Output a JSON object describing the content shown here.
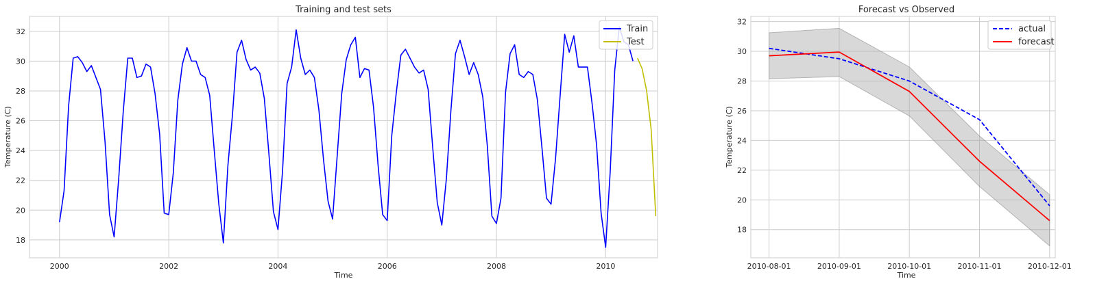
{
  "chart_data": [
    {
      "type": "line",
      "title": "Training and test sets",
      "xlabel": "Time",
      "ylabel": "Temperature (C)",
      "xlim": [
        1999.45,
        2010.95
      ],
      "ylim": [
        16.8,
        33.0
      ],
      "xticks": [
        2000,
        2002,
        2004,
        2006,
        2008,
        2010
      ],
      "xtick_labels": [
        "2000",
        "2002",
        "2004",
        "2006",
        "2008",
        "2010"
      ],
      "yticks": [
        18,
        20,
        22,
        24,
        26,
        28,
        30,
        32
      ],
      "ytick_labels": [
        "18",
        "20",
        "22",
        "24",
        "26",
        "28",
        "30",
        "32"
      ],
      "grid": true,
      "legend": "top-right",
      "series": [
        {
          "name": "Train",
          "color": "#0000ff",
          "x_start": 2000,
          "x_step": 0.08333,
          "values": [
            19.2,
            21.3,
            27.0,
            30.2,
            30.3,
            29.9,
            29.3,
            29.7,
            28.9,
            28.1,
            24.6,
            19.7,
            18.2,
            22.1,
            26.6,
            30.2,
            30.2,
            28.9,
            29.0,
            29.8,
            29.6,
            27.8,
            25.1,
            19.8,
            19.7,
            22.5,
            27.4,
            29.8,
            30.9,
            30.0,
            30.0,
            29.1,
            28.9,
            27.7,
            24.0,
            20.4,
            17.8,
            23.0,
            26.4,
            30.6,
            31.4,
            30.1,
            29.4,
            29.6,
            29.2,
            27.5,
            23.8,
            19.9,
            18.7,
            22.6,
            28.5,
            29.6,
            32.1,
            30.2,
            29.1,
            29.4,
            28.9,
            26.7,
            23.4,
            20.6,
            19.4,
            23.6,
            27.8,
            30.1,
            31.1,
            31.6,
            28.9,
            29.5,
            29.4,
            26.9,
            23.0,
            19.7,
            19.3,
            25.0,
            27.9,
            30.4,
            30.8,
            30.2,
            29.6,
            29.2,
            29.4,
            28.1,
            24.2,
            20.5,
            19.0,
            22.1,
            26.7,
            30.5,
            31.4,
            30.3,
            29.1,
            29.9,
            29.1,
            27.6,
            24.3,
            19.6,
            19.1,
            20.8,
            27.9,
            30.5,
            31.1,
            29.1,
            28.9,
            29.3,
            29.1,
            27.4,
            24.2,
            20.8,
            20.4,
            23.5,
            27.7,
            31.8,
            30.6,
            31.7,
            29.6,
            29.6,
            29.6,
            27.2,
            24.4,
            19.8,
            17.5,
            22.6,
            29.4,
            32.3,
            31.3,
            31.1,
            30.0
          ]
        },
        {
          "name": "Test",
          "color": "#bfbf00",
          "x_start": 2010.5833,
          "x_step": 0.08333,
          "values": [
            30.2,
            29.5,
            28.0,
            25.4,
            19.6
          ]
        }
      ]
    },
    {
      "type": "line",
      "title": "Forecast vs Observed",
      "xlabel": "Time",
      "ylabel": "Temperature (C)",
      "categories": [
        "2010-08-01",
        "2010-09-01",
        "2010-10-01",
        "2010-11-01",
        "2010-12-01"
      ],
      "xlim": [
        -0.26,
        4.08
      ],
      "ylim": [
        16.1,
        32.35
      ],
      "yticks": [
        18,
        20,
        22,
        24,
        26,
        28,
        30,
        32
      ],
      "ytick_labels": [
        "18",
        "20",
        "22",
        "24",
        "26",
        "28",
        "30",
        "32"
      ],
      "grid": true,
      "legend": "top-right",
      "series": [
        {
          "name": "actual",
          "color": "#0000ff",
          "style": "dashed",
          "values": [
            30.2,
            29.5,
            28.0,
            25.4,
            19.6
          ]
        },
        {
          "name": "forecast",
          "color": "#ff0000",
          "style": "solid",
          "values": [
            29.7,
            29.95,
            27.3,
            22.6,
            18.6
          ]
        }
      ],
      "confidence_band": {
        "color": "#a9a9a9",
        "lower": [
          28.15,
          28.3,
          25.65,
          20.9,
          16.9
        ],
        "upper": [
          31.25,
          31.55,
          28.95,
          24.3,
          20.35
        ]
      }
    }
  ]
}
